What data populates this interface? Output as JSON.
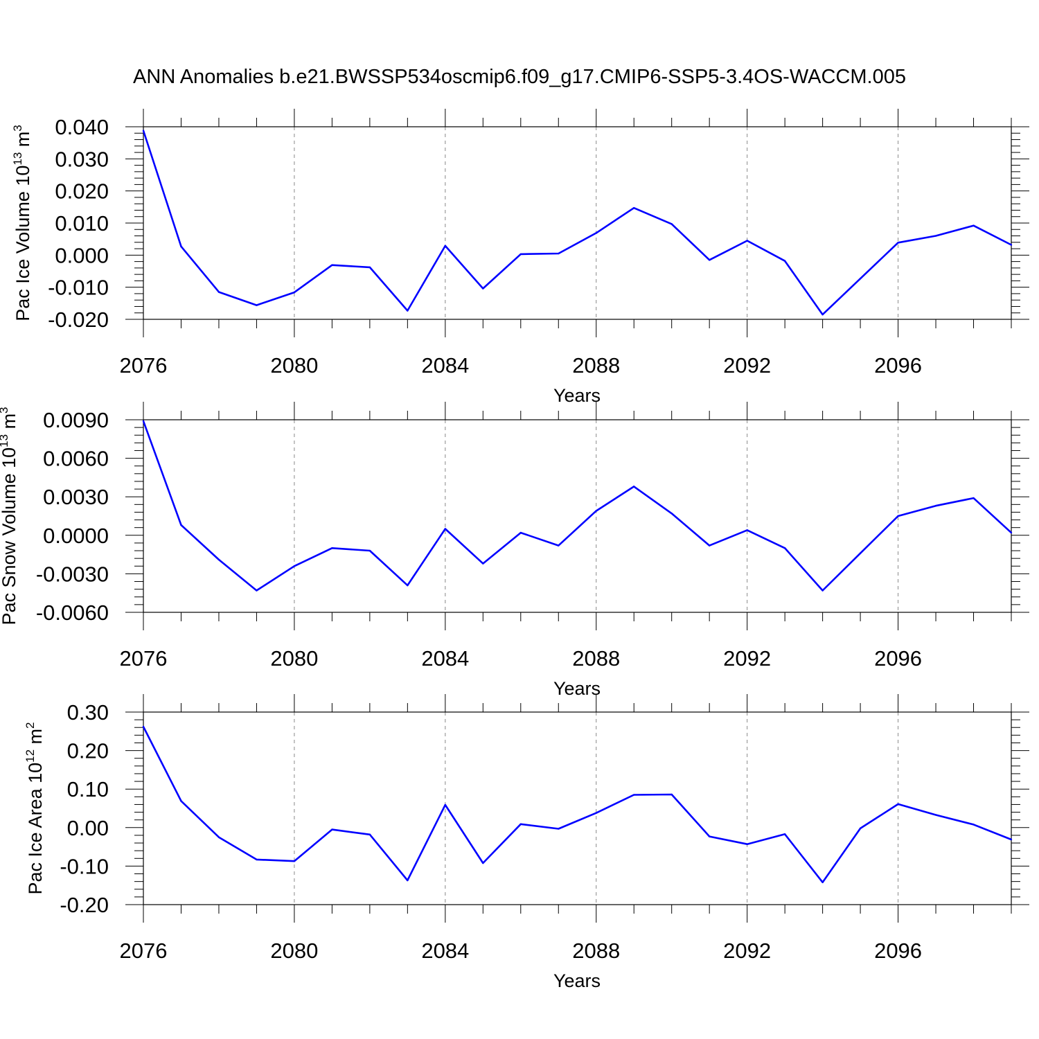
{
  "title": "ANN Anomalies b.e21.BWSSP534oscmip6.f09_g17.CMIP6-SSP5-3.4OS-WACCM.005",
  "series_color": "#0000ff",
  "chart_data": [
    {
      "type": "line",
      "ylabel": "Pac Ice Volume",
      "yunit": {
        "base": "10",
        "exp": "13",
        "unit": "m",
        "unit_exp": "3"
      },
      "xlabel": "Years",
      "xlim": [
        2076,
        2099
      ],
      "ylim": [
        -0.02,
        0.04
      ],
      "xticks": [
        2076,
        2080,
        2084,
        2088,
        2092,
        2096
      ],
      "yticks": [
        -0.02,
        -0.01,
        0.0,
        0.01,
        0.02,
        0.03,
        0.04
      ],
      "ytick_labels": [
        "-0.020",
        "-0.010",
        "0.000",
        "0.010",
        "0.020",
        "0.030",
        "0.040"
      ],
      "grid_x": true,
      "x": [
        2076,
        2077,
        2078,
        2079,
        2080,
        2081,
        2082,
        2083,
        2084,
        2085,
        2086,
        2087,
        2088,
        2089,
        2090,
        2091,
        2092,
        2093,
        2094,
        2095,
        2096,
        2097,
        2098,
        2099
      ],
      "values": [
        0.0388,
        0.0027,
        -0.0115,
        -0.0156,
        -0.0116,
        -0.0031,
        -0.0038,
        -0.0173,
        0.0029,
        -0.0104,
        0.0003,
        0.0005,
        0.0069,
        0.0147,
        0.0097,
        -0.0015,
        0.0045,
        -0.0018,
        -0.0185,
        -0.0073,
        0.0039,
        0.006,
        0.0092,
        0.0032
      ]
    },
    {
      "type": "line",
      "ylabel": "Pac Snow Volume",
      "yunit": {
        "base": "10",
        "exp": "13",
        "unit": "m",
        "unit_exp": "3"
      },
      "xlabel": "Years",
      "xlim": [
        2076,
        2099
      ],
      "ylim": [
        -0.006,
        0.009
      ],
      "xticks": [
        2076,
        2080,
        2084,
        2088,
        2092,
        2096
      ],
      "yticks": [
        -0.006,
        -0.003,
        0.0,
        0.003,
        0.006,
        0.009
      ],
      "ytick_labels": [
        "-0.0060",
        "-0.0030",
        "0.0000",
        "0.0030",
        "0.0060",
        "0.0090"
      ],
      "grid_x": true,
      "x": [
        2076,
        2077,
        2078,
        2079,
        2080,
        2081,
        2082,
        2083,
        2084,
        2085,
        2086,
        2087,
        2088,
        2089,
        2090,
        2091,
        2092,
        2093,
        2094,
        2095,
        2096,
        2097,
        2098,
        2099
      ],
      "values": [
        0.0089,
        0.0008,
        -0.0019,
        -0.0043,
        -0.0024,
        -0.001,
        -0.0012,
        -0.0039,
        0.0005,
        -0.0022,
        0.0002,
        -0.0008,
        0.0019,
        0.0038,
        0.0017,
        -0.0008,
        0.0004,
        -0.001,
        -0.0043,
        -0.0014,
        0.0015,
        0.0023,
        0.0029,
        0.0002
      ]
    },
    {
      "type": "line",
      "ylabel": "Pac Ice Area",
      "yunit": {
        "base": "10",
        "exp": "12",
        "unit": "m",
        "unit_exp": "2"
      },
      "xlabel": "Years",
      "xlim": [
        2076,
        2099
      ],
      "ylim": [
        -0.2,
        0.3
      ],
      "xticks": [
        2076,
        2080,
        2084,
        2088,
        2092,
        2096
      ],
      "yticks": [
        -0.2,
        -0.1,
        0.0,
        0.1,
        0.2,
        0.3
      ],
      "ytick_labels": [
        "-0.20",
        "-0.10",
        "0.00",
        "0.10",
        "0.20",
        "0.30"
      ],
      "grid_x": true,
      "x": [
        2076,
        2077,
        2078,
        2079,
        2080,
        2081,
        2082,
        2083,
        2084,
        2085,
        2086,
        2087,
        2088,
        2089,
        2090,
        2091,
        2092,
        2093,
        2094,
        2095,
        2096,
        2097,
        2098,
        2099
      ],
      "values": [
        0.262,
        0.069,
        -0.025,
        -0.083,
        -0.087,
        -0.005,
        -0.018,
        -0.137,
        0.059,
        -0.092,
        0.009,
        -0.003,
        0.038,
        0.085,
        0.086,
        -0.023,
        -0.043,
        -0.017,
        -0.142,
        -0.002,
        0.061,
        0.033,
        0.008,
        -0.031
      ]
    }
  ]
}
